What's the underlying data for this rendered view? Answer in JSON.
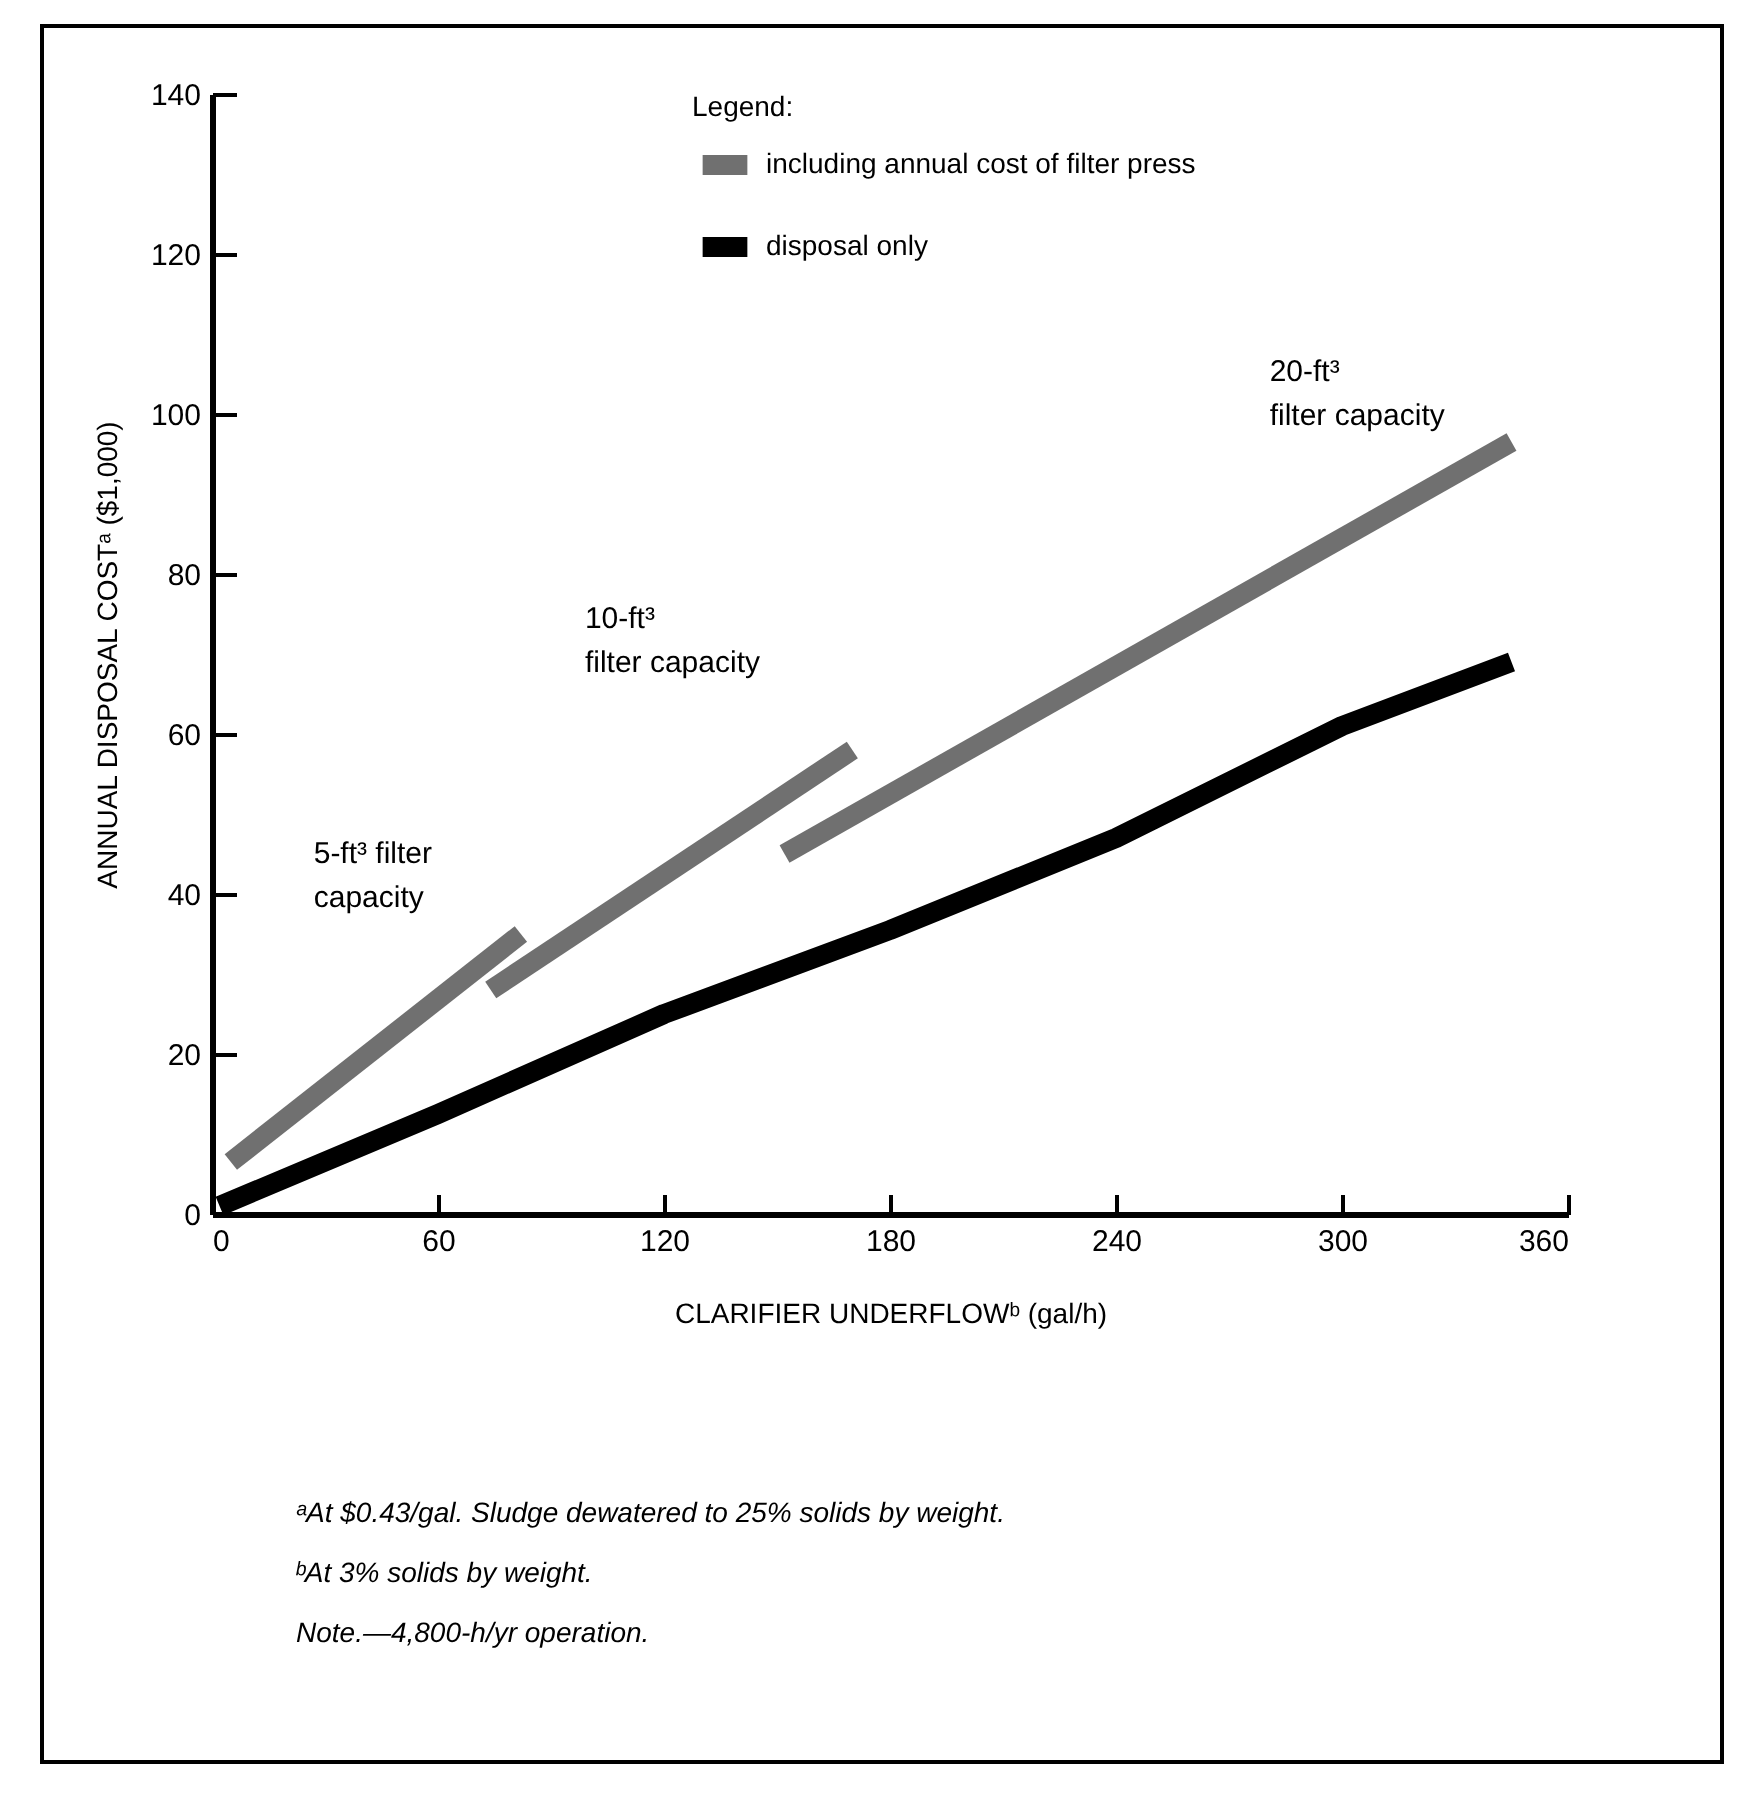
{
  "chart_data": {
    "type": "line",
    "xlabel": "CLARIFIER UNDERFLOWᵇ (gal/h)",
    "ylabel": "ANNUAL DISPOSAL COSTᵃ ($1,000)",
    "legend_title": "Legend:",
    "xlim": [
      0,
      360
    ],
    "xticks": [
      0,
      60,
      120,
      180,
      240,
      300,
      360
    ],
    "ylim": [
      0,
      140
    ],
    "yticks": [
      0,
      20,
      40,
      60,
      80,
      100,
      120,
      140
    ],
    "grid": false,
    "legend": "top right",
    "marker": "none",
    "line_style": "solid",
    "series": [
      {
        "name": "including annual cost of filter press",
        "color": "#707070",
        "x": [
          5,
          82
        ],
        "values": [
          6.5,
          35
        ]
      },
      {
        "color": "#707070",
        "x": [
          74,
          170
        ],
        "values": [
          28,
          58
        ]
      },
      {
        "color": "#707070",
        "x": [
          152,
          345
        ],
        "values": [
          45,
          96.5
        ]
      },
      {
        "name": "disposal only",
        "color": "#000000",
        "x": [
          2,
          60,
          120,
          180,
          240,
          300,
          345
        ],
        "values": [
          1,
          12.5,
          25,
          35.5,
          47,
          61,
          69
        ]
      }
    ],
    "annotations": [
      "5-ft³ filter\ncapacity",
      "10-ft³\nfilter capacity",
      "20-ft³\nfilter capacity",
      "ᵃAt $0.43/gal. Sludge dewatered to 25% solids by weight.",
      "ᵇAt 3% solids by weight.",
      "Note.—4,800-h/yr operation."
    ]
  }
}
